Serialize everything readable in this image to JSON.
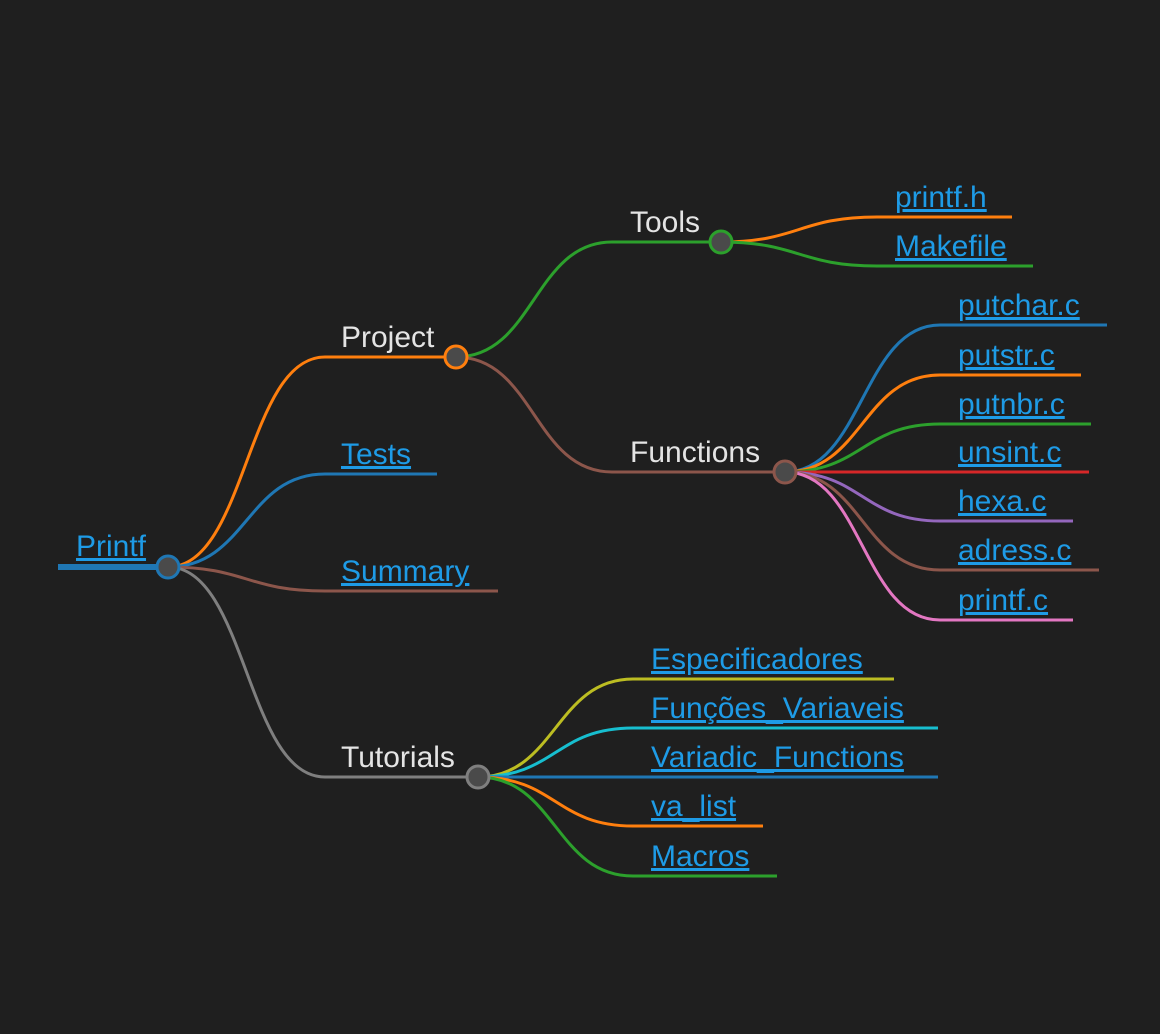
{
  "mindmap": {
    "root": {
      "label": "Printf",
      "color": "#1f77b4",
      "link": true
    },
    "branches": [
      {
        "id": "project",
        "label": "Project",
        "color": "#ff7f0e",
        "link": false,
        "children": [
          {
            "id": "tools",
            "label": "Tools",
            "color": "#2ca02c",
            "link": false,
            "children": [
              {
                "label": "printf.h",
                "color": "#ff7f0e",
                "link": true
              },
              {
                "label": "Makefile",
                "color": "#2ca02c",
                "link": true
              }
            ]
          },
          {
            "id": "functions",
            "label": "Functions",
            "color": "#8c564b",
            "link": false,
            "children": [
              {
                "label": "putchar.c",
                "color": "#1f77b4",
                "link": true
              },
              {
                "label": "putstr.c",
                "color": "#ff7f0e",
                "link": true
              },
              {
                "label": "putnbr.c",
                "color": "#2ca02c",
                "link": true
              },
              {
                "label": "unsint.c",
                "color": "#d62728",
                "link": true
              },
              {
                "label": "hexa.c",
                "color": "#9467bd",
                "link": true
              },
              {
                "label": "adress.c",
                "color": "#8c564b",
                "link": true
              },
              {
                "label": "printf.c",
                "color": "#e377c2",
                "link": true
              }
            ]
          }
        ]
      },
      {
        "id": "tests",
        "label": "Tests",
        "color": "#1f77b4",
        "link": true
      },
      {
        "id": "summary",
        "label": "Summary",
        "color": "#8c564b",
        "link": true
      },
      {
        "id": "tutorials",
        "label": "Tutorials",
        "color": "#7f7f7f",
        "link": false,
        "children": [
          {
            "label": "Especificadores",
            "color": "#bcbd22",
            "link": true
          },
          {
            "label": "Funções_Variaveis",
            "color": "#17becf",
            "link": true
          },
          {
            "label": "Variadic_Functions",
            "color": "#1f77b4",
            "link": true
          },
          {
            "label": "va_list",
            "color": "#ff7f0e",
            "link": true
          },
          {
            "label": "Macros",
            "color": "#2ca02c",
            "link": true
          }
        ]
      }
    ]
  }
}
